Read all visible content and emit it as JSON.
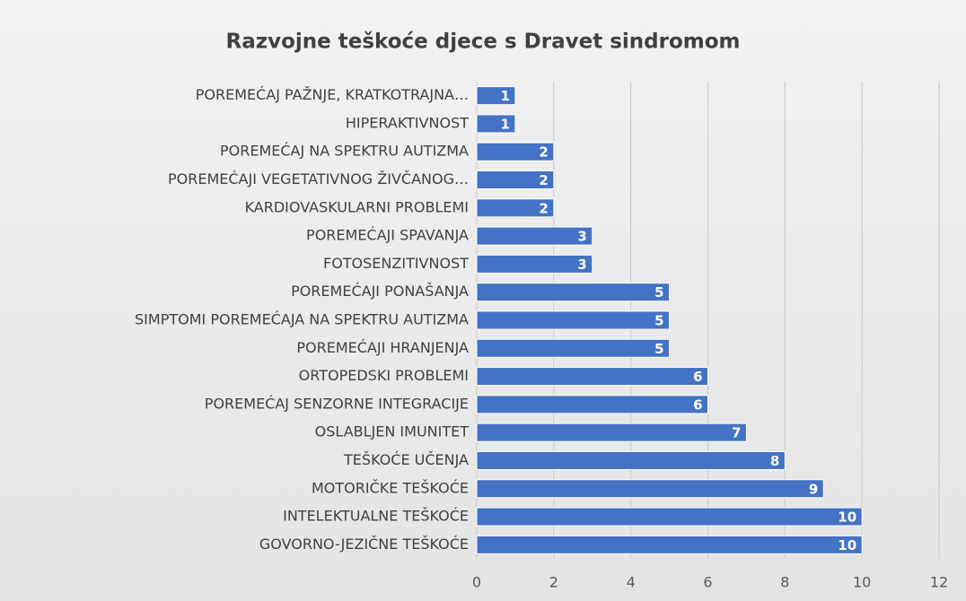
{
  "chart_data": {
    "type": "bar",
    "orientation": "horizontal",
    "title": "Razvojne teškoće djece s Dravet sindromom",
    "categories": [
      "POREMEĆAJ PAŽNJE, KRATKOTRAJNA…",
      "HIPERAKTIVNOST",
      "POREMEĆAJ NA SPEKTRU AUTIZMA",
      "POREMEĆAJI VEGETATIVNOG ŽIVČANOG…",
      "KARDIOVASKULARNI PROBLEMI",
      "POREMEĆAJI SPAVANJA",
      "FOTOSENZITIVNOST",
      "POREMEĆAJI PONAŠANJA",
      "SIMPTOMI POREMEĆAJA NA SPEKTRU AUTIZMA",
      "POREMEĆAJI HRANJENJA",
      "ORTOPEDSKI PROBLEMI",
      "POREMEĆAJ SENZORNE INTEGRACIJE",
      "OSLABLJEN IMUNITET",
      "TEŠKOĆE UČENJA",
      "MOTORIČKE TEŠKOĆE",
      "INTELEKTUALNE TEŠKOĆE",
      "GOVORNO-JEZIČNE TEŠKOĆE"
    ],
    "values": [
      1,
      1,
      2,
      2,
      2,
      3,
      3,
      5,
      5,
      5,
      6,
      6,
      7,
      8,
      9,
      10,
      10
    ],
    "color": "#4472c4",
    "xlim": [
      0,
      12
    ],
    "xticks": [
      0,
      2,
      4,
      6,
      8,
      10,
      12
    ],
    "grid": true
  }
}
